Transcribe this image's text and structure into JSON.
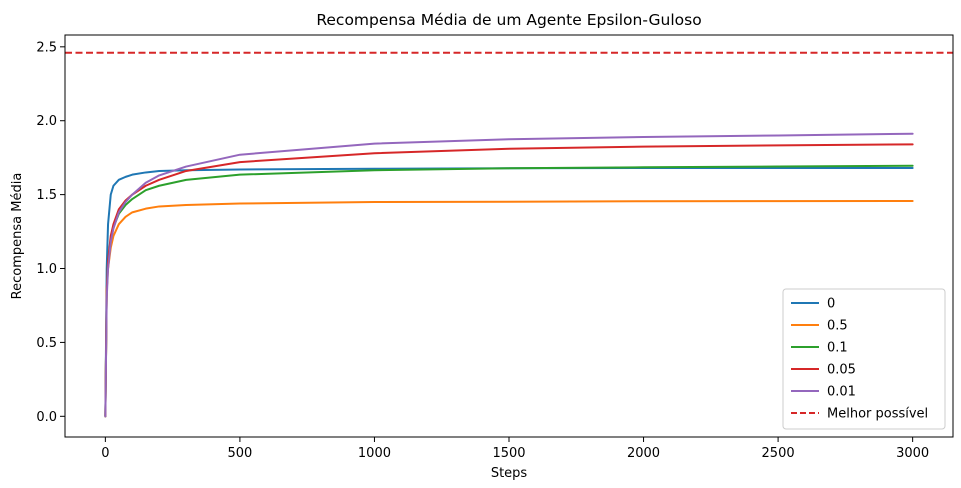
{
  "chart_data": {
    "type": "line",
    "title": "Recompensa Média de um Agente Epsilon-Guloso",
    "xlabel": "Steps",
    "ylabel": "Recompensa Média",
    "xlim": [
      -150,
      3150
    ],
    "ylim": [
      -0.14,
      2.58
    ],
    "xticks": [
      0,
      500,
      1000,
      1500,
      2000,
      2500,
      3000
    ],
    "xtick_labels": [
      "0",
      "500",
      "1000",
      "1500",
      "2000",
      "2500",
      "3000"
    ],
    "yticks": [
      0.0,
      0.5,
      1.0,
      1.5,
      2.0,
      2.5
    ],
    "ytick_labels": [
      "0.0",
      "0.5",
      "1.0",
      "1.5",
      "2.0",
      "2.5"
    ],
    "grid": false,
    "legend_position": "lower-right",
    "series": [
      {
        "name": "0",
        "color": "#1f77b4",
        "x": [
          0,
          5,
          10,
          20,
          30,
          50,
          75,
          100,
          150,
          200,
          300,
          500,
          1000,
          1500,
          2000,
          2500,
          3000
        ],
        "y": [
          0.0,
          1.0,
          1.3,
          1.5,
          1.56,
          1.6,
          1.62,
          1.635,
          1.65,
          1.66,
          1.665,
          1.67,
          1.675,
          1.678,
          1.68,
          1.68,
          1.68
        ]
      },
      {
        "name": "0.5",
        "color": "#ff7f0e",
        "x": [
          0,
          5,
          10,
          20,
          30,
          50,
          75,
          100,
          150,
          200,
          300,
          500,
          1000,
          1500,
          2000,
          2500,
          3000
        ],
        "y": [
          0.0,
          0.85,
          1.0,
          1.14,
          1.22,
          1.3,
          1.35,
          1.38,
          1.405,
          1.42,
          1.43,
          1.44,
          1.45,
          1.452,
          1.455,
          1.456,
          1.457
        ]
      },
      {
        "name": "0.1",
        "color": "#2ca02c",
        "x": [
          0,
          5,
          10,
          20,
          30,
          50,
          75,
          100,
          150,
          200,
          300,
          500,
          1000,
          1500,
          2000,
          2500,
          3000
        ],
        "y": [
          0.0,
          0.85,
          1.05,
          1.2,
          1.28,
          1.37,
          1.43,
          1.47,
          1.53,
          1.56,
          1.6,
          1.635,
          1.665,
          1.678,
          1.685,
          1.69,
          1.695
        ]
      },
      {
        "name": "0.05",
        "color": "#d62728",
        "x": [
          0,
          5,
          10,
          20,
          30,
          50,
          75,
          100,
          150,
          200,
          300,
          500,
          1000,
          1500,
          2000,
          2500,
          3000
        ],
        "y": [
          0.0,
          0.85,
          1.05,
          1.22,
          1.3,
          1.4,
          1.46,
          1.5,
          1.56,
          1.6,
          1.66,
          1.72,
          1.78,
          1.81,
          1.825,
          1.833,
          1.84
        ]
      },
      {
        "name": "0.01",
        "color": "#9467bd",
        "x": [
          0,
          5,
          10,
          20,
          30,
          50,
          75,
          100,
          150,
          200,
          300,
          500,
          1000,
          1500,
          2000,
          2500,
          3000
        ],
        "y": [
          0.0,
          0.8,
          1.0,
          1.18,
          1.27,
          1.38,
          1.45,
          1.5,
          1.58,
          1.63,
          1.69,
          1.77,
          1.845,
          1.875,
          1.89,
          1.9,
          1.912
        ]
      }
    ],
    "reference_line": {
      "name": "Melhor possível",
      "color": "#d62728",
      "y": 2.46,
      "style": "dashed"
    }
  }
}
